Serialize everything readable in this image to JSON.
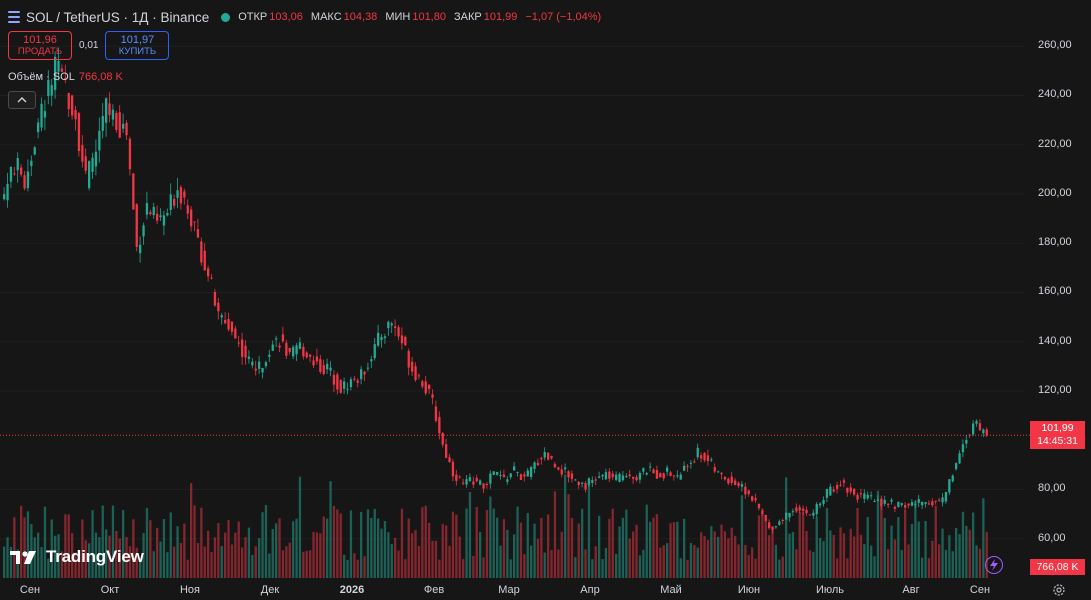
{
  "header": {
    "symbol_title": "SOL / TetherUS · 1Д · Binance",
    "open_label": "ОТКР",
    "open": "103,06",
    "high_label": "МАКС",
    "high": "104,38",
    "low_label": "МИН",
    "low": "101,80",
    "close_label": "ЗАКР",
    "close": "101,99",
    "change": "−1,07 (−1,04%)"
  },
  "trade": {
    "sell_price": "101,96",
    "sell_label": "ПРОДАТЬ",
    "spread": "0,01",
    "buy_price": "101,97",
    "buy_label": "КУПИТЬ"
  },
  "volume_legend": {
    "name": "Объём · SOL",
    "value": "766,08 K"
  },
  "logo_text": "TradingView",
  "price_tag": {
    "price": "101,99",
    "countdown": "14:45:31"
  },
  "volume_tag": "766,08 K",
  "colors": {
    "up": "#22ab94",
    "down": "#f23645",
    "background": "#161616"
  },
  "icons": [
    "symbol-list-icon",
    "status-dot-icon",
    "chevron-up-icon",
    "tradingview-logo-icon",
    "lightning-icon",
    "gear-icon"
  ],
  "chart_data": {
    "type": "candlestick",
    "ylim": [
      60,
      265
    ],
    "y_ticks": [
      "260,00",
      "240,00",
      "220,00",
      "200,00",
      "180,00",
      "160,00",
      "140,00",
      "120,00",
      "101,99",
      "80,00",
      "60,00"
    ],
    "x_ticks": [
      "Сен",
      "Окт",
      "Ноя",
      "Дек",
      "2026",
      "Фев",
      "Мар",
      "Апр",
      "Май",
      "Июн",
      "Июль",
      "Авг",
      "Сен"
    ],
    "last_price": 101.99,
    "close_path": [
      [
        0,
        200
      ],
      [
        3,
        212
      ],
      [
        6,
        205
      ],
      [
        9,
        222
      ],
      [
        12,
        238
      ],
      [
        15,
        250
      ],
      [
        18,
        244
      ],
      [
        21,
        232
      ],
      [
        24,
        205
      ],
      [
        27,
        218
      ],
      [
        30,
        235
      ],
      [
        33,
        230
      ],
      [
        36,
        225
      ],
      [
        39,
        178
      ],
      [
        42,
        195
      ],
      [
        45,
        188
      ],
      [
        48,
        192
      ],
      [
        51,
        203
      ],
      [
        54,
        196
      ],
      [
        57,
        180
      ],
      [
        60,
        168
      ],
      [
        63,
        150
      ],
      [
        66,
        147
      ],
      [
        69,
        139
      ],
      [
        72,
        132
      ],
      [
        75,
        129
      ],
      [
        78,
        138
      ],
      [
        81,
        141
      ],
      [
        84,
        133
      ],
      [
        87,
        138
      ],
      [
        90,
        134
      ],
      [
        93,
        130
      ],
      [
        96,
        128
      ],
      [
        99,
        121
      ],
      [
        102,
        124
      ],
      [
        105,
        126
      ],
      [
        108,
        135
      ],
      [
        111,
        143
      ],
      [
        114,
        148
      ],
      [
        117,
        140
      ],
      [
        120,
        129
      ],
      [
        123,
        124
      ],
      [
        126,
        115
      ],
      [
        129,
        98
      ],
      [
        132,
        87
      ],
      [
        135,
        82
      ],
      [
        138,
        84
      ],
      [
        141,
        81
      ],
      [
        144,
        87
      ],
      [
        147,
        84
      ],
      [
        150,
        88
      ],
      [
        153,
        84
      ],
      [
        156,
        90
      ],
      [
        159,
        95
      ],
      [
        162,
        90
      ],
      [
        165,
        87
      ],
      [
        168,
        84
      ],
      [
        171,
        82
      ],
      [
        174,
        84
      ],
      [
        177,
        86
      ],
      [
        180,
        84
      ],
      [
        183,
        87
      ],
      [
        186,
        85
      ],
      [
        189,
        88
      ],
      [
        192,
        86
      ],
      [
        195,
        87
      ],
      [
        198,
        85
      ],
      [
        201,
        90
      ],
      [
        204,
        95
      ],
      [
        207,
        92
      ],
      [
        210,
        86
      ],
      [
        213,
        84
      ],
      [
        216,
        82
      ],
      [
        219,
        78
      ],
      [
        222,
        72
      ],
      [
        225,
        64
      ],
      [
        228,
        67
      ],
      [
        231,
        71
      ],
      [
        234,
        73
      ],
      [
        237,
        69
      ],
      [
        240,
        75
      ],
      [
        243,
        80
      ],
      [
        246,
        83
      ],
      [
        249,
        79
      ],
      [
        252,
        77
      ],
      [
        255,
        76
      ],
      [
        258,
        75
      ],
      [
        261,
        74
      ],
      [
        264,
        73
      ],
      [
        267,
        74
      ],
      [
        270,
        75
      ],
      [
        273,
        75
      ],
      [
        276,
        76
      ],
      [
        279,
        87
      ],
      [
        282,
        98
      ],
      [
        285,
        107
      ],
      [
        287,
        104
      ],
      [
        289,
        102
      ]
    ],
    "volume_unit": "K",
    "current_volume": 766.08
  }
}
